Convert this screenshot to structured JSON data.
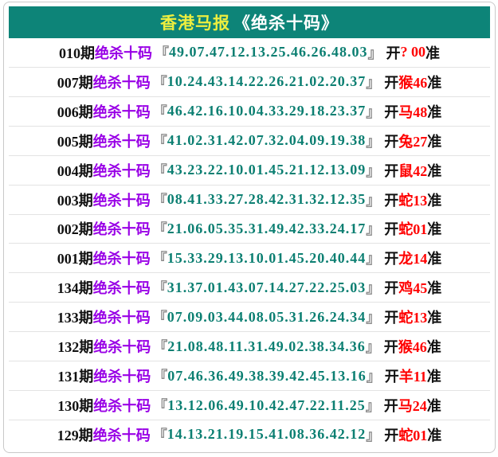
{
  "header": {
    "title_brand": "香港马报",
    "title_book": "《绝杀十码》"
  },
  "strings": {
    "kill_label": "绝杀十码",
    "open_bracket": "『",
    "close_bracket": "』",
    "open_prefix": "开",
    "accurate_suffix": "准"
  },
  "rows": [
    {
      "period": "010期",
      "numbers": "49.07.47.12.13.25.46.26.48.03",
      "result": "? 00"
    },
    {
      "period": "007期",
      "numbers": "10.24.43.14.22.26.21.02.20.37",
      "result": "猴46"
    },
    {
      "period": "006期",
      "numbers": "46.42.16.10.04.33.29.18.23.37",
      "result": "马48"
    },
    {
      "period": "005期",
      "numbers": "41.02.31.42.07.32.04.09.19.38",
      "result": "兔27"
    },
    {
      "period": "004期",
      "numbers": "43.23.22.10.01.45.21.12.13.09",
      "result": "鼠42"
    },
    {
      "period": "003期",
      "numbers": "08.41.33.27.28.42.31.32.12.35",
      "result": "蛇13"
    },
    {
      "period": "002期",
      "numbers": "21.06.05.35.31.49.42.33.24.17",
      "result": "蛇01"
    },
    {
      "period": "001期",
      "numbers": "15.33.29.13.10.01.45.20.40.44",
      "result": "龙14"
    },
    {
      "period": "134期",
      "numbers": "31.37.01.43.07.14.27.22.25.03",
      "result": "鸡45"
    },
    {
      "period": "133期",
      "numbers": "07.09.03.44.08.05.31.26.24.34",
      "result": "蛇13"
    },
    {
      "period": "132期",
      "numbers": "21.08.48.11.31.49.02.38.34.36",
      "result": "猴46"
    },
    {
      "period": "131期",
      "numbers": "07.46.36.49.38.39.42.45.13.16",
      "result": "羊11"
    },
    {
      "period": "130期",
      "numbers": "13.12.06.49.10.42.47.22.11.25",
      "result": "马24"
    },
    {
      "period": "129期",
      "numbers": "14.13.21.19.15.41.08.36.42.12",
      "result": "蛇01"
    }
  ],
  "colors": {
    "header_bg": "#0d8478",
    "brand": "#edee3f",
    "book": "#ffffff",
    "label": "#9900e6",
    "numbers": "#0c7f72",
    "result": "#ff0000",
    "period": "#111111",
    "bracket": "#8a8a8a",
    "border": "#c9c9c9",
    "divider": "#e3e3e3"
  }
}
